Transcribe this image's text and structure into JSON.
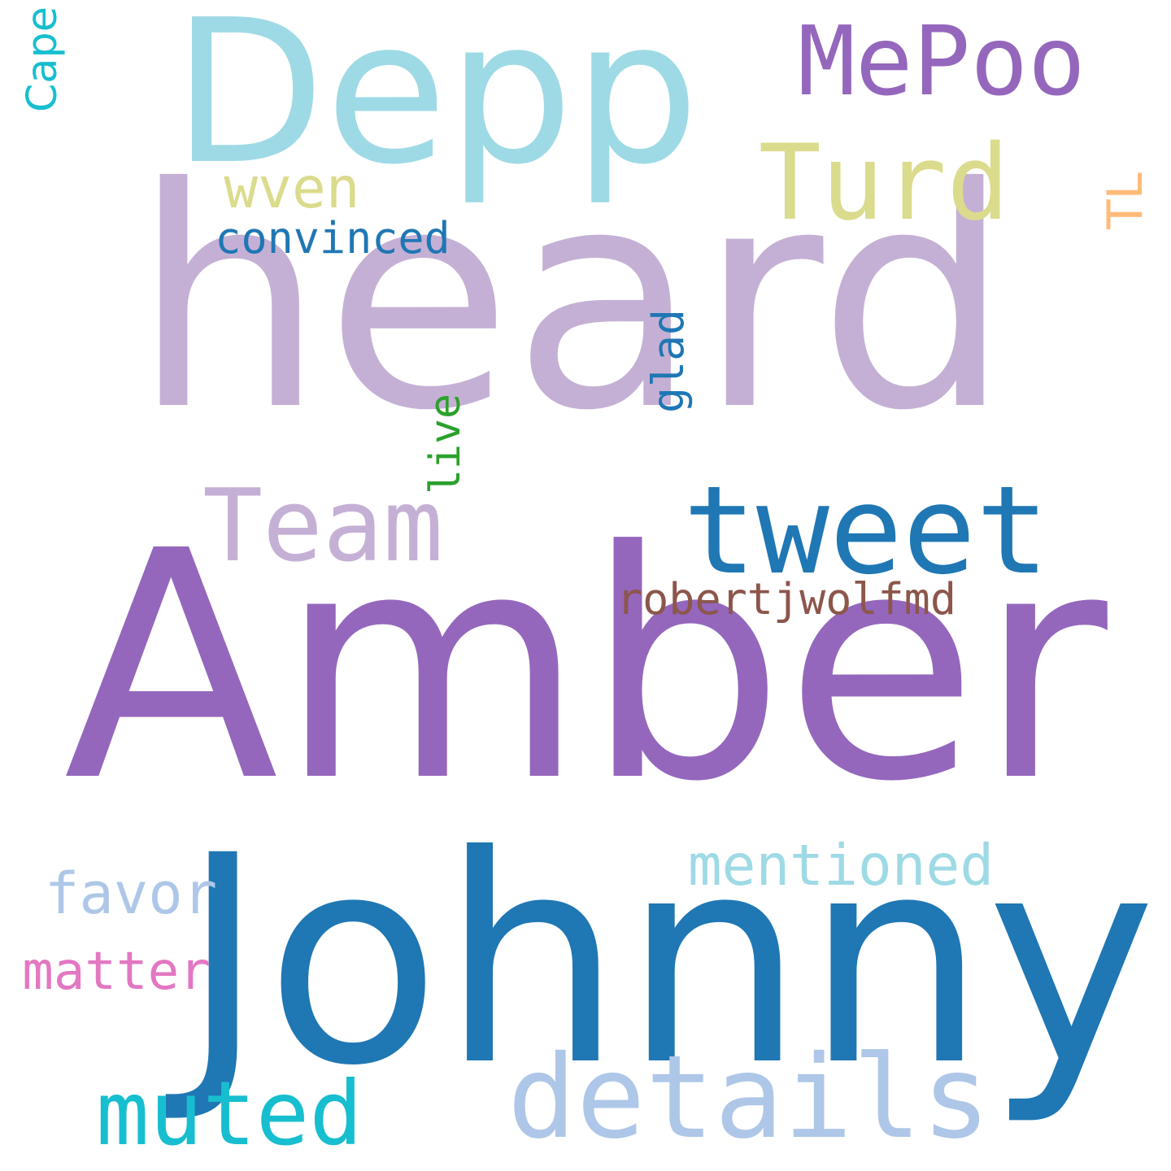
{
  "words": [
    {
      "text": "heard",
      "color": "#c5b0d5"
    },
    {
      "text": "Amber",
      "color": "#9467bd"
    },
    {
      "text": "Johnny",
      "color": "#1f77b4"
    },
    {
      "text": "Depp",
      "color": "#9edae5"
    },
    {
      "text": "MePoo",
      "color": "#9467bd"
    },
    {
      "text": "Turd",
      "color": "#dbdb8d"
    },
    {
      "text": "wven",
      "color": "#dbdb8d"
    },
    {
      "text": "convinced",
      "color": "#1f77b4"
    },
    {
      "text": "Team",
      "color": "#c5b0d5"
    },
    {
      "text": "tweet",
      "color": "#1f77b4"
    },
    {
      "text": "robertjwolfmd",
      "color": "#8c564b"
    },
    {
      "text": "mentioned",
      "color": "#9edae5"
    },
    {
      "text": "favor",
      "color": "#aec7e8"
    },
    {
      "text": "matter",
      "color": "#e377c2"
    },
    {
      "text": "details",
      "color": "#aec7e8"
    },
    {
      "text": "muted",
      "color": "#17becf"
    },
    {
      "text": "Cape",
      "color": "#17becf"
    },
    {
      "text": "TL",
      "color": "#ffbb78"
    },
    {
      "text": "glad",
      "color": "#1f77b4"
    },
    {
      "text": "live",
      "color": "#2ca02c"
    }
  ]
}
